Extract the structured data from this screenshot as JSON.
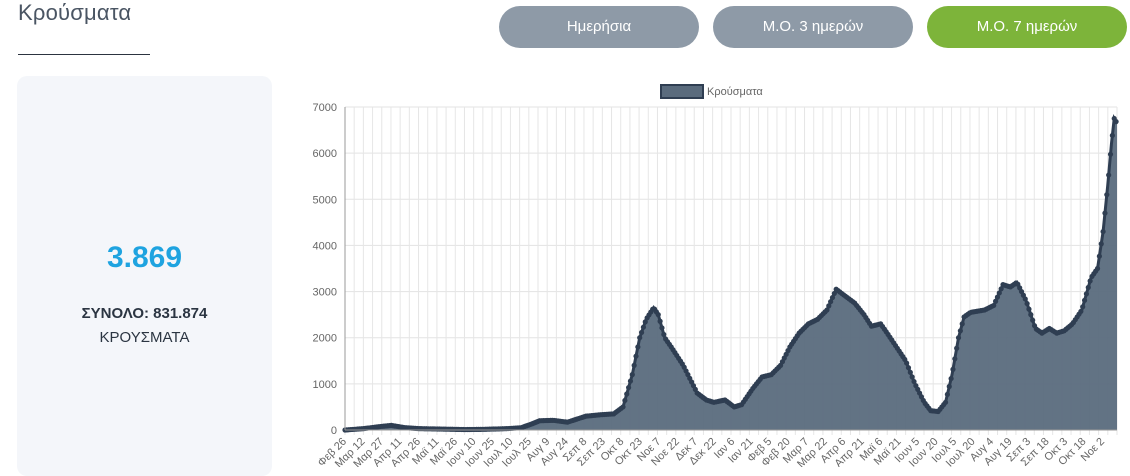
{
  "header": {
    "title": "Κρούσματα"
  },
  "tabs": [
    {
      "label": "Ημερήσια",
      "active": false
    },
    {
      "label": "Μ.Ο. 3 ημερών",
      "active": false
    },
    {
      "label": "Μ.Ο. 7 ημερών",
      "active": true
    }
  ],
  "stats": {
    "value": "3.869",
    "total": "ΣΥΝΟΛΟ: 831.874",
    "label": "ΚΡΟΥΣΜΑΤΑ"
  },
  "colors": {
    "accent_green": "#7db43a",
    "tab_gray": "#8e9aa7",
    "stat_blue": "#1ea3e0",
    "series_fill": "#5a6b7d",
    "series_line": "#2f3e52"
  },
  "chart_data": {
    "type": "area",
    "legend": {
      "label": "Κρούσματα",
      "position": "top"
    },
    "ylim": [
      0,
      7000
    ],
    "yticks": [
      0,
      1000,
      2000,
      3000,
      4000,
      5000,
      6000,
      7000
    ],
    "grid": true,
    "x_tick_labels": [
      "Φεβ 26",
      "Μαρ 12",
      "Μαρ 27",
      "Απρ 11",
      "Απρ 26",
      "Μαϊ 11",
      "Μαϊ 26",
      "Ιουν 10",
      "Ιουν 25",
      "Ιουλ 10",
      "Ιουλ 25",
      "Αυγ 9",
      "Αυγ 24",
      "Σεπ 8",
      "Σεπ 23",
      "Οκτ 8",
      "Οκτ 23",
      "Νοε 7",
      "Νοε 22",
      "Δεκ 7",
      "Δεκ 22",
      "Ιαν 6",
      "Ιαν 21",
      "Φεβ 5",
      "Φεβ 20",
      "Μαρ 7",
      "Μαρ 22",
      "Απρ 6",
      "Απρ 21",
      "Μαϊ 6",
      "Μαϊ 21",
      "Ιουν 5",
      "Ιουν 20",
      "Ιουλ 5",
      "Ιουλ 20",
      "Αυγ 4",
      "Αυγ 19",
      "Σεπ 3",
      "Σεπ 18",
      "Οκτ 3",
      "Οκτ 18",
      "Νοε 2"
    ],
    "series": [
      {
        "name": "Κρούσματα",
        "keypoints": [
          [
            0,
            0
          ],
          [
            20,
            30
          ],
          [
            40,
            80
          ],
          [
            50,
            100
          ],
          [
            65,
            50
          ],
          [
            80,
            30
          ],
          [
            130,
            10
          ],
          [
            150,
            15
          ],
          [
            175,
            30
          ],
          [
            190,
            50
          ],
          [
            200,
            120
          ],
          [
            210,
            200
          ],
          [
            225,
            210
          ],
          [
            240,
            170
          ],
          [
            260,
            300
          ],
          [
            275,
            330
          ],
          [
            290,
            350
          ],
          [
            300,
            500
          ],
          [
            310,
            1200
          ],
          [
            318,
            2000
          ],
          [
            325,
            2400
          ],
          [
            333,
            2650
          ],
          [
            338,
            2500
          ],
          [
            345,
            2000
          ],
          [
            352,
            1800
          ],
          [
            365,
            1400
          ],
          [
            380,
            800
          ],
          [
            390,
            650
          ],
          [
            398,
            600
          ],
          [
            410,
            650
          ],
          [
            420,
            500
          ],
          [
            428,
            550
          ],
          [
            440,
            900
          ],
          [
            450,
            1150
          ],
          [
            460,
            1200
          ],
          [
            470,
            1400
          ],
          [
            480,
            1800
          ],
          [
            490,
            2100
          ],
          [
            500,
            2300
          ],
          [
            510,
            2400
          ],
          [
            520,
            2600
          ],
          [
            530,
            3050
          ],
          [
            540,
            2900
          ],
          [
            550,
            2750
          ],
          [
            560,
            2500
          ],
          [
            568,
            2250
          ],
          [
            578,
            2300
          ],
          [
            585,
            2100
          ],
          [
            595,
            1800
          ],
          [
            605,
            1500
          ],
          [
            615,
            1000
          ],
          [
            625,
            600
          ],
          [
            632,
            420
          ],
          [
            640,
            400
          ],
          [
            648,
            600
          ],
          [
            655,
            1200
          ],
          [
            662,
            2000
          ],
          [
            668,
            2450
          ],
          [
            675,
            2550
          ],
          [
            690,
            2600
          ],
          [
            700,
            2700
          ],
          [
            710,
            3150
          ],
          [
            718,
            3100
          ],
          [
            725,
            3200
          ],
          [
            735,
            2800
          ],
          [
            745,
            2200
          ],
          [
            752,
            2100
          ],
          [
            760,
            2200
          ],
          [
            768,
            2100
          ],
          [
            776,
            2150
          ],
          [
            785,
            2300
          ],
          [
            795,
            2600
          ],
          [
            805,
            3300
          ],
          [
            812,
            3500
          ],
          [
            818,
            4300
          ],
          [
            823,
            5300
          ],
          [
            827,
            6200
          ],
          [
            830,
            6750
          ],
          [
            833,
            6650
          ]
        ]
      }
    ]
  }
}
